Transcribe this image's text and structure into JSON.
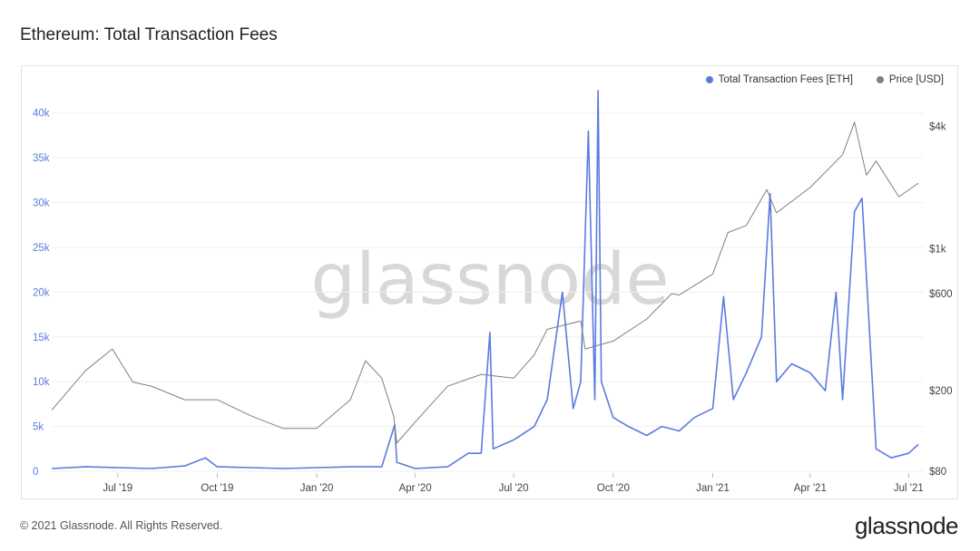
{
  "title": "Ethereum: Total Transaction Fees",
  "footer": "© 2021 Glassnode. All Rights Reserved.",
  "logo_text": "glassnode",
  "watermark": "glassnode",
  "legend": [
    {
      "label": "Total Transaction Fees [ETH]",
      "color": "#5b7be0"
    },
    {
      "label": "Price [USD]",
      "color": "#808080"
    }
  ],
  "chart_data": {
    "type": "line",
    "x_ticks": [
      "Jul '19",
      "Oct '19",
      "Jan '20",
      "Apr '20",
      "Jul '20",
      "Oct '20",
      "Jan '21",
      "Apr '21",
      "Jul '21"
    ],
    "y_left_ticks": [
      "0",
      "5k",
      "10k",
      "15k",
      "20k",
      "25k",
      "30k",
      "35k",
      "40k"
    ],
    "y_left_range": [
      0,
      42500
    ],
    "y_right_ticks": [
      "$80",
      "$200",
      "$600",
      "$1k",
      "$4k"
    ],
    "y_right_scale": "log",
    "grid": true,
    "legend_position": "top-right",
    "series": [
      {
        "name": "Total Transaction Fees [ETH]",
        "axis": "left",
        "x": [
          "2019-05-01",
          "2019-06-01",
          "2019-07-01",
          "2019-08-01",
          "2019-09-01",
          "2019-09-20",
          "2019-10-01",
          "2019-11-01",
          "2019-12-01",
          "2020-01-01",
          "2020-02-01",
          "2020-03-01",
          "2020-03-13",
          "2020-03-15",
          "2020-04-01",
          "2020-05-01",
          "2020-05-20",
          "2020-06-01",
          "2020-06-09",
          "2020-06-12",
          "2020-07-01",
          "2020-07-20",
          "2020-08-01",
          "2020-08-15",
          "2020-08-25",
          "2020-09-01",
          "2020-09-08",
          "2020-09-14",
          "2020-09-17",
          "2020-09-20",
          "2020-10-01",
          "2020-10-15",
          "2020-11-01",
          "2020-11-15",
          "2020-12-01",
          "2020-12-15",
          "2021-01-01",
          "2021-01-11",
          "2021-01-20",
          "2021-02-01",
          "2021-02-15",
          "2021-02-23",
          "2021-03-01",
          "2021-03-15",
          "2021-04-01",
          "2021-04-15",
          "2021-04-25",
          "2021-05-01",
          "2021-05-12",
          "2021-05-19",
          "2021-06-01",
          "2021-06-15",
          "2021-07-01",
          "2021-07-10"
        ],
        "values": [
          300,
          500,
          400,
          300,
          600,
          1500,
          500,
          400,
          300,
          400,
          500,
          500,
          5200,
          1000,
          300,
          500,
          2000,
          2000,
          15500,
          2500,
          3500,
          5000,
          8000,
          20000,
          7000,
          10000,
          38000,
          8000,
          42500,
          10000,
          6000,
          5000,
          4000,
          5000,
          4500,
          6000,
          7000,
          19500,
          8000,
          11000,
          15000,
          31000,
          10000,
          12000,
          11000,
          9000,
          20000,
          8000,
          29000,
          30500,
          2500,
          1500,
          2000,
          3000
        ]
      },
      {
        "name": "Price [USD]",
        "axis": "right",
        "x": [
          "2019-05-01",
          "2019-06-01",
          "2019-06-26",
          "2019-07-15",
          "2019-08-01",
          "2019-09-01",
          "2019-10-01",
          "2019-11-01",
          "2019-12-01",
          "2020-01-01",
          "2020-02-01",
          "2020-02-15",
          "2020-03-01",
          "2020-03-12",
          "2020-03-15",
          "2020-04-01",
          "2020-05-01",
          "2020-06-01",
          "2020-07-01",
          "2020-07-20",
          "2020-08-01",
          "2020-09-01",
          "2020-09-05",
          "2020-10-01",
          "2020-11-01",
          "2020-11-24",
          "2020-12-01",
          "2021-01-01",
          "2021-01-15",
          "2021-02-01",
          "2021-02-20",
          "2021-03-01",
          "2021-04-01",
          "2021-05-01",
          "2021-05-12",
          "2021-05-23",
          "2021-06-01",
          "2021-06-22",
          "2021-07-10"
        ],
        "values": [
          160,
          250,
          320,
          220,
          210,
          180,
          180,
          150,
          130,
          130,
          180,
          280,
          230,
          150,
          110,
          140,
          210,
          240,
          230,
          300,
          400,
          440,
          320,
          350,
          450,
          600,
          590,
          750,
          1200,
          1300,
          1950,
          1500,
          2000,
          2900,
          4200,
          2300,
          2700,
          1800,
          2100
        ]
      }
    ]
  }
}
